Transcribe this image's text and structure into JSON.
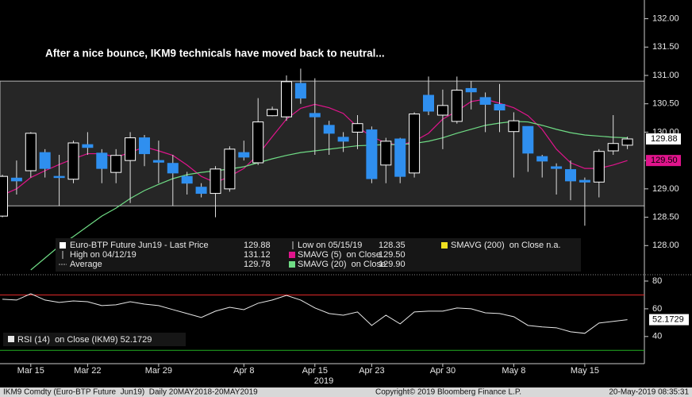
{
  "chart_data": [
    {
      "type": "candlestick",
      "annotation": "After a nice bounce, IKM9 technicals have moved back to neutral...",
      "categories": [
        null,
        null,
        "Mar 15",
        null,
        null,
        null,
        "Mar 22",
        null,
        null,
        null,
        null,
        "Mar 29",
        null,
        null,
        null,
        null,
        null,
        "Apr 8",
        null,
        null,
        null,
        null,
        "Apr 15",
        null,
        null,
        null,
        "Apr 23",
        null,
        null,
        null,
        null,
        "Apr 30",
        null,
        null,
        null,
        null,
        "May 8",
        null,
        null,
        null,
        null,
        "May 15",
        null,
        null,
        null
      ],
      "x_year": "2019",
      "open": [
        128.52,
        129.19,
        129.32,
        129.64,
        129.22,
        129.17,
        129.78,
        129.63,
        129.29,
        129.5,
        129.9,
        129.5,
        129.45,
        129.22,
        129.03,
        128.92,
        129.0,
        129.64,
        129.46,
        130.29,
        130.27,
        130.86,
        130.33,
        130.12,
        129.91,
        130.0,
        130.04,
        129.42,
        129.88,
        129.28,
        130.65,
        130.3,
        130.19,
        130.77,
        130.61,
        130.49,
        130.01,
        130.1,
        129.57,
        129.39,
        129.34,
        129.15,
        129.12,
        129.67,
        129.77
      ],
      "high": [
        129.25,
        129.5,
        130.0,
        129.7,
        129.6,
        129.85,
        130.0,
        129.7,
        129.7,
        130.0,
        129.95,
        129.85,
        129.6,
        129.3,
        129.1,
        129.4,
        129.75,
        129.85,
        130.6,
        130.45,
        131.0,
        131.12,
        130.95,
        130.2,
        130.0,
        130.3,
        130.1,
        129.9,
        129.9,
        130.35,
        130.98,
        130.75,
        130.98,
        130.9,
        130.7,
        130.85,
        130.35,
        130.1,
        129.6,
        129.45,
        129.5,
        129.2,
        129.7,
        130.3,
        129.92
      ],
      "low": [
        128.5,
        128.9,
        129.2,
        129.2,
        128.7,
        129.1,
        129.6,
        129.1,
        129.1,
        128.75,
        129.4,
        129.1,
        128.7,
        128.9,
        128.85,
        128.5,
        128.95,
        129.5,
        129.42,
        130.28,
        130.2,
        130.5,
        129.6,
        129.6,
        129.65,
        129.7,
        129.1,
        129.1,
        129.1,
        129.2,
        130.3,
        129.7,
        130.15,
        130.4,
        130.0,
        130.0,
        129.2,
        129.3,
        129.2,
        128.9,
        128.8,
        128.35,
        128.85,
        129.6,
        129.7
      ],
      "close": [
        129.22,
        129.14,
        129.98,
        129.36,
        129.2,
        129.81,
        129.73,
        129.36,
        129.59,
        129.9,
        129.62,
        129.47,
        129.28,
        129.1,
        128.92,
        129.35,
        129.7,
        129.56,
        130.18,
        130.4,
        130.89,
        130.6,
        130.27,
        129.98,
        129.84,
        130.15,
        129.18,
        129.84,
        129.22,
        130.32,
        130.37,
        130.47,
        130.74,
        130.71,
        130.49,
        130.39,
        130.2,
        129.63,
        129.49,
        129.36,
        129.14,
        129.12,
        129.66,
        129.8,
        129.88
      ],
      "up_color": "#ffffff",
      "down_color": "#2f8fef",
      "lines": [
        {
          "name": "SMAVG (5)  on Close",
          "color": "#e0148c",
          "value_label": "129.50",
          "values": [
            128.89,
            129.0,
            129.2,
            129.32,
            129.43,
            129.53,
            129.62,
            129.62,
            129.56,
            129.64,
            129.74,
            129.67,
            129.59,
            129.42,
            129.22,
            129.11,
            129.22,
            129.36,
            129.6,
            129.92,
            130.23,
            130.42,
            130.49,
            130.43,
            130.33,
            130.09,
            129.92,
            129.81,
            129.77,
            129.84,
            129.98,
            130.23,
            130.37,
            130.54,
            130.58,
            130.51,
            130.43,
            130.29,
            130.05,
            129.7,
            129.46,
            129.36,
            129.36,
            129.42,
            129.5
          ]
        },
        {
          "name": "SMAVG (20)  on Close",
          "color": "#6fdc85",
          "value_label": "129.90",
          "values": [
            null,
            null,
            127.57,
            127.78,
            127.99,
            128.16,
            128.34,
            128.52,
            128.66,
            128.83,
            128.97,
            129.08,
            129.18,
            129.25,
            129.29,
            129.32,
            129.35,
            129.39,
            129.46,
            129.53,
            129.59,
            129.64,
            129.67,
            129.7,
            129.73,
            129.76,
            129.77,
            129.78,
            129.78,
            129.8,
            129.84,
            129.9,
            129.98,
            130.05,
            130.12,
            130.16,
            130.19,
            130.18,
            130.12,
            130.05,
            129.99,
            129.95,
            129.93,
            129.91,
            129.9
          ]
        }
      ],
      "extra_legend": {
        "name": "SMAVG (200)  on Close",
        "color": "#f0e020",
        "value_label": "n.a."
      },
      "stats": [
        {
          "label": "Euro-BTP Future Jun19 - Last Price",
          "value": 129.88
        },
        {
          "label": "High on 04/12/19",
          "value": 131.12
        },
        {
          "label": "Average",
          "value": 129.78
        },
        {
          "label": "Low on 05/15/19",
          "value": 128.35
        }
      ],
      "range_band": [
        128.7,
        130.9
      ],
      "ylim": [
        127.5,
        132.33
      ],
      "yticks": [
        {
          "value": 128,
          "label": "128.00"
        },
        {
          "value": 128.5,
          "label": "128.50"
        },
        {
          "value": 129,
          "label": "129.00"
        },
        {
          "value": 129.5,
          "label": "129.50"
        },
        {
          "value": 130,
          "label": "130.00"
        },
        {
          "value": 130.5,
          "label": "130.50"
        },
        {
          "value": 131,
          "label": "131.00"
        },
        {
          "value": 131.5,
          "label": "131.50"
        },
        {
          "value": 132,
          "label": "132.00"
        }
      ]
    },
    {
      "type": "line",
      "series": [
        {
          "name": "RSI (14)  on Close (IKM9)",
          "color": "#e8e8e8",
          "values": [
            66.9,
            66.3,
            70.9,
            66.3,
            64.6,
            65.7,
            65.1,
            62.3,
            62.9,
            65.1,
            63.4,
            62.3,
            59.4,
            56.6,
            53.7,
            58.3,
            61.1,
            59.4,
            64.0,
            66.3,
            69.7,
            66.3,
            60.6,
            56.6,
            55.4,
            57.7,
            48.0,
            55.4,
            49.1,
            57.7,
            58.3,
            58.3,
            60.6,
            60.0,
            57.1,
            56.6,
            54.3,
            48.0,
            46.9,
            46.3,
            43.4,
            42.3,
            49.7,
            50.9,
            52.1729
          ]
        }
      ],
      "levels": [
        {
          "value": 70,
          "color": "#e02828"
        },
        {
          "value": 30,
          "color": "#22b022"
        }
      ],
      "ylim": [
        21,
        84
      ],
      "yticks": [
        40,
        60,
        80
      ]
    }
  ],
  "footer": {
    "left": "IKM9 Comdty (Euro-BTP Future  Jun19)  Daily 20MAY2018-20MAY2019",
    "center": "Copyright© 2019 Bloomberg Finance L.P.",
    "right": "20-May-2019 08:35:31"
  }
}
